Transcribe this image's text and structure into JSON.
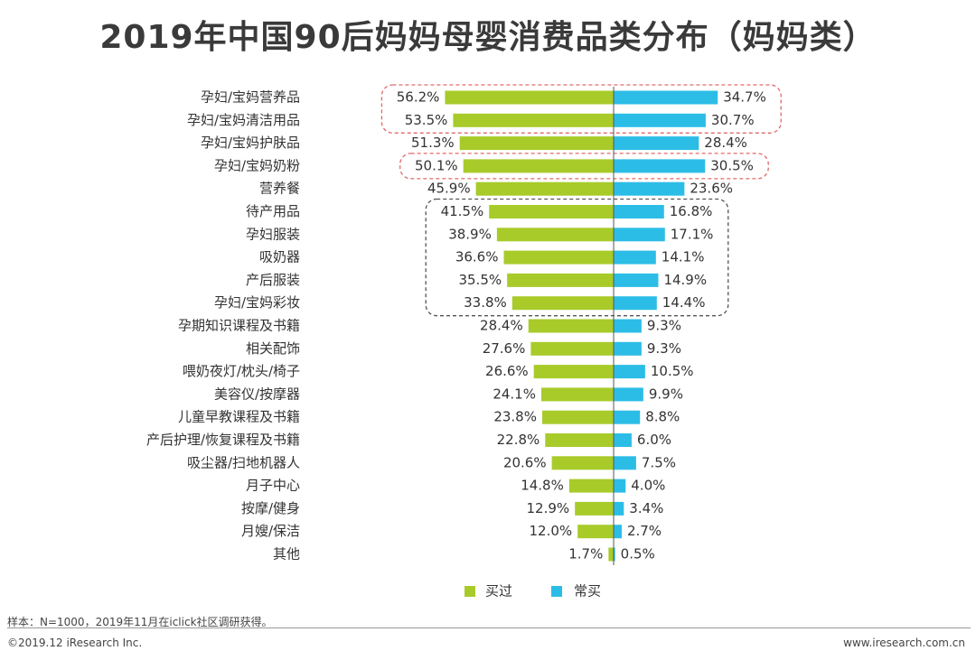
{
  "footer": {
    "note": "样本：N=1000，2019年11月在iclick社区调研获得。",
    "copyright": "©2019.12 iResearch Inc.",
    "website": "www.iresearch.com.cn"
  },
  "colors": {
    "bought": "#a8cb2a",
    "often": "#2cbde6",
    "axis": "#555555"
  },
  "chart_data": {
    "type": "bar",
    "orientation": "horizontal-diverging",
    "title": "2019年中国90后妈妈母婴消费品类分布（妈妈类）",
    "categories": [
      "孕妇/宝妈营养品",
      "孕妇/宝妈清洁用品",
      "孕妇/宝妈护肤品",
      "孕妇/宝妈奶粉",
      "营养餐",
      "待产用品",
      "孕妇服装",
      "吸奶器",
      "产后服装",
      "孕妇/宝妈彩妆",
      "孕期知识课程及书籍",
      "相关配饰",
      "喂奶夜灯/枕头/椅子",
      "美容仪/按摩器",
      "儿童早教课程及书籍",
      "产后护理/恢复课程及书籍",
      "吸尘器/扫地机器人",
      "月子中心",
      "按摩/健身",
      "月嫂/保洁",
      "其他"
    ],
    "series": [
      {
        "name": "买过",
        "values": [
          56.2,
          53.5,
          51.3,
          50.1,
          45.9,
          41.5,
          38.9,
          36.6,
          35.5,
          33.8,
          28.4,
          27.6,
          26.6,
          24.1,
          23.8,
          22.8,
          20.6,
          14.8,
          12.9,
          12.0,
          1.7
        ]
      },
      {
        "name": "常买",
        "values": [
          34.7,
          30.7,
          28.4,
          30.5,
          23.6,
          16.8,
          17.1,
          14.1,
          14.9,
          14.4,
          9.3,
          9.3,
          10.5,
          9.9,
          8.8,
          6.0,
          7.5,
          4.0,
          3.4,
          2.7,
          0.5
        ]
      }
    ],
    "unit": "%",
    "legend_position": "bottom-center",
    "highlight_groups": [
      {
        "style": "red-dashed",
        "rows": [
          0,
          1
        ]
      },
      {
        "style": "red-dashed",
        "rows": [
          3,
          3
        ]
      },
      {
        "style": "gray-dashed",
        "rows": [
          5,
          9
        ]
      }
    ]
  }
}
